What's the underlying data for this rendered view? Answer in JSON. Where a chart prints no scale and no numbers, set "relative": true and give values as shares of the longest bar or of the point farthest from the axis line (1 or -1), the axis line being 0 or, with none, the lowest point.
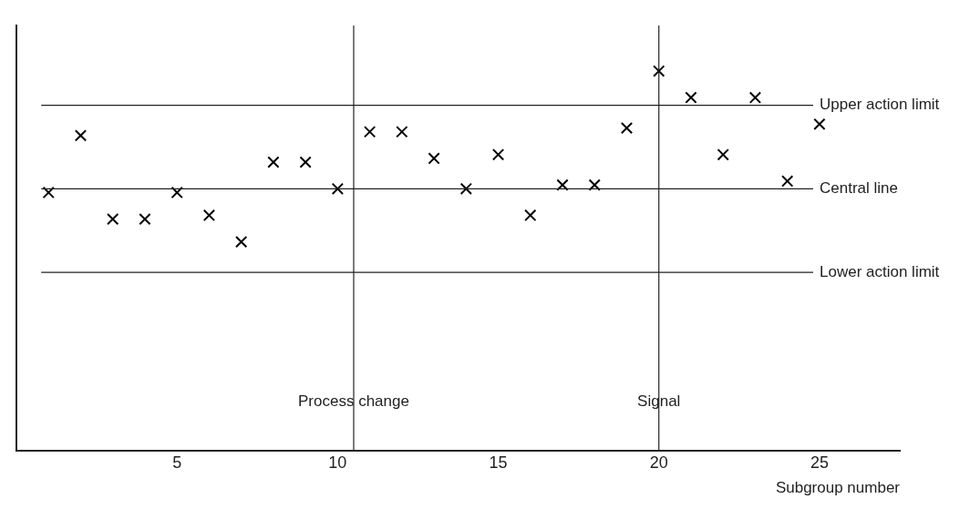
{
  "chart_data": {
    "type": "scatter",
    "relative": true,
    "xlabel": "Subgroup number",
    "x": [
      1,
      2,
      3,
      4,
      5,
      6,
      7,
      8,
      9,
      10,
      11,
      12,
      13,
      14,
      15,
      16,
      17,
      18,
      19,
      20,
      21,
      22,
      23,
      24,
      25
    ],
    "series": [
      {
        "color": "#000000",
        "values": [
          0.68,
          0.83,
          0.61,
          0.61,
          0.68,
          0.62,
          0.55,
          0.76,
          0.76,
          0.69,
          0.84,
          0.84,
          0.77,
          0.69,
          0.78,
          0.62,
          0.7,
          0.7,
          0.85,
          1,
          0.93,
          0.78,
          0.93,
          0.71,
          0.86
        ]
      }
    ],
    "xlim": [
      0,
      27.5
    ],
    "xticks": [
      5,
      10,
      15,
      20,
      25
    ],
    "marker": "cross",
    "grid": false,
    "legend": false,
    "ref_lines": [
      {
        "axis": "y",
        "value": 0.91,
        "label": "Upper action limit"
      },
      {
        "axis": "y",
        "value": 0.69,
        "label": "Central line"
      },
      {
        "axis": "y",
        "value": 0.47,
        "label": "Lower action limit"
      },
      {
        "axis": "x",
        "value": 10.5,
        "label": "Process change"
      },
      {
        "axis": "x",
        "value": 20,
        "label": "Signal"
      }
    ]
  }
}
